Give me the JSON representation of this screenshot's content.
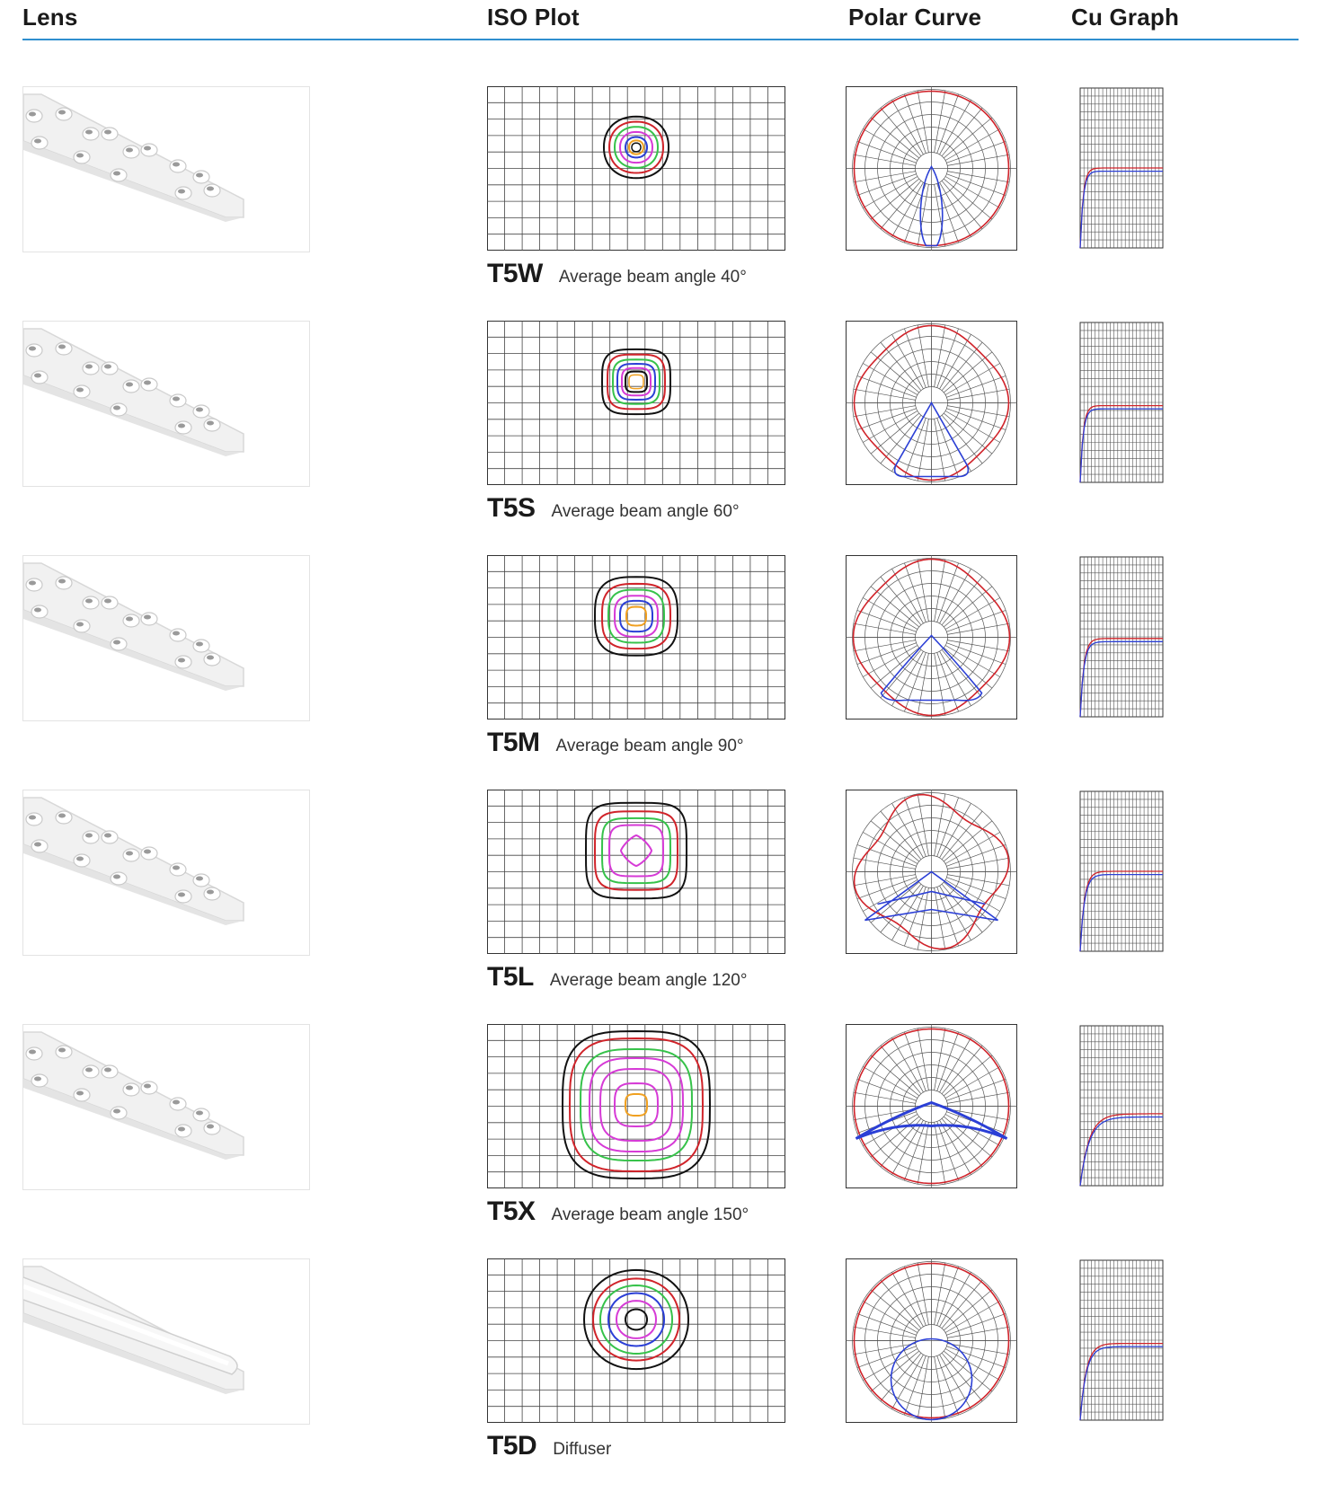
{
  "header": {
    "lens": "Lens",
    "iso_plot": "ISO Plot",
    "polar_curve": "Polar Curve",
    "cu_graph": "Cu Graph"
  },
  "colors": {
    "accent_rule": "#2f8fce",
    "iso_black": "#111111",
    "iso_red": "#d0232a",
    "iso_green": "#36c24a",
    "iso_blue": "#2b3fd6",
    "iso_magenta": "#d63ad6",
    "iso_orange": "#f0a020",
    "polar_red": "#d0232a",
    "polar_blue": "#2b3fd6"
  },
  "rows": [
    {
      "code": "T5W",
      "description": "Average beam angle 40°"
    },
    {
      "code": "T5S",
      "description": "Average beam  angle 60°"
    },
    {
      "code": "T5M",
      "description": "Average beam  angle 90°"
    },
    {
      "code": "T5L",
      "description": "Average beam  angle 120°"
    },
    {
      "code": "T5X",
      "description": "Average beam  angle 150°"
    },
    {
      "code": "T5D",
      "description": "Diffuser"
    }
  ]
}
